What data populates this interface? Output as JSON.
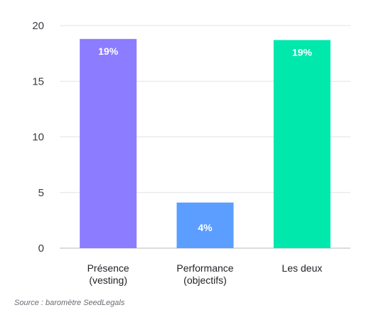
{
  "chart_data": {
    "type": "bar",
    "categories": [
      [
        "Présence",
        "(vesting)"
      ],
      [
        "Performance",
        "(objectifs)"
      ],
      [
        "Les deux"
      ]
    ],
    "values": [
      18.8,
      4.1,
      18.7
    ],
    "data_labels": [
      "19%",
      "4%",
      "19%"
    ],
    "colors": [
      "#8c7cff",
      "#5b9eff",
      "#00e8ac"
    ],
    "yticks": [
      0,
      5,
      10,
      15,
      20
    ],
    "ylim": [
      0,
      20
    ],
    "grid": true,
    "xlabel": "",
    "ylabel": ""
  },
  "source": "Source : baromètre SeedLegals"
}
